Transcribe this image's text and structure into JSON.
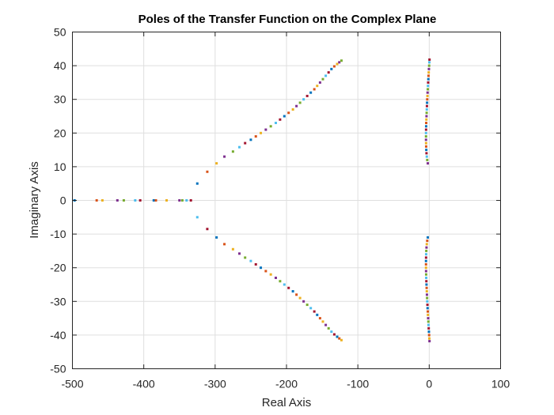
{
  "chart_data": {
    "type": "scatter",
    "title": "Poles of the Transfer Function on the Complex Plane",
    "xlabel": "Real Axis",
    "ylabel": "Imaginary Axis",
    "xlim": [
      -500,
      100
    ],
    "ylim": [
      -50,
      50
    ],
    "xticks": [
      -500,
      -400,
      -300,
      -200,
      -100,
      0,
      100
    ],
    "yticks": [
      -50,
      -40,
      -30,
      -20,
      -10,
      0,
      10,
      20,
      30,
      40,
      50
    ],
    "xtick_labels": [
      "-500",
      "-400",
      "-300",
      "-200",
      "-100",
      "0",
      "100"
    ],
    "ytick_labels": [
      "-50",
      "-40",
      "-30",
      "-20",
      "-10",
      "0",
      "10",
      "20",
      "30",
      "40",
      "50"
    ],
    "grid": true,
    "legend": "none",
    "marker": "square",
    "colors": [
      "#0072BD",
      "#D95319",
      "#EDB120",
      "#7E2F8E",
      "#77AC30",
      "#4DBEEE",
      "#A2142F"
    ],
    "series": [
      {
        "values": [
          {
            "x": -497,
            "y": 0
          },
          {
            "x": -466,
            "y": 0
          },
          {
            "x": -458,
            "y": 0
          },
          {
            "x": -437,
            "y": 0
          },
          {
            "x": -428,
            "y": 0
          },
          {
            "x": -412,
            "y": 0
          },
          {
            "x": -405,
            "y": 0
          },
          {
            "x": -386,
            "y": 0
          },
          {
            "x": -383,
            "y": 0
          },
          {
            "x": -368,
            "y": 0
          },
          {
            "x": -350,
            "y": 0
          },
          {
            "x": -346,
            "y": 0
          },
          {
            "x": -340,
            "y": 0
          },
          {
            "x": -334,
            "y": 0
          }
        ]
      },
      {
        "values": [
          {
            "x": -325,
            "y": 5
          },
          {
            "x": -311,
            "y": 8.5
          },
          {
            "x": -298,
            "y": 11
          },
          {
            "x": -287,
            "y": 13
          },
          {
            "x": -275,
            "y": 14.5
          },
          {
            "x": -266,
            "y": 15.8
          },
          {
            "x": -258,
            "y": 17
          },
          {
            "x": -250,
            "y": 18
          },
          {
            "x": -243,
            "y": 19
          },
          {
            "x": -236,
            "y": 20
          },
          {
            "x": -229,
            "y": 21
          },
          {
            "x": -222,
            "y": 22
          },
          {
            "x": -215,
            "y": 23
          },
          {
            "x": -209,
            "y": 24
          },
          {
            "x": -203,
            "y": 25
          },
          {
            "x": -197,
            "y": 26
          },
          {
            "x": -191,
            "y": 27
          },
          {
            "x": -186,
            "y": 28
          },
          {
            "x": -181,
            "y": 29
          },
          {
            "x": -176,
            "y": 30
          },
          {
            "x": -171,
            "y": 31
          },
          {
            "x": -166,
            "y": 32
          },
          {
            "x": -161,
            "y": 33
          },
          {
            "x": -157,
            "y": 34
          },
          {
            "x": -153,
            "y": 35
          },
          {
            "x": -149,
            "y": 36
          },
          {
            "x": -145,
            "y": 37
          },
          {
            "x": -141,
            "y": 38
          },
          {
            "x": -137,
            "y": 39
          },
          {
            "x": -133,
            "y": 39.8
          },
          {
            "x": -129,
            "y": 40.5
          },
          {
            "x": -126,
            "y": 41
          },
          {
            "x": -123,
            "y": 41.5
          }
        ]
      },
      {
        "values": [
          {
            "x": -325,
            "y": -5
          },
          {
            "x": -311,
            "y": -8.5
          },
          {
            "x": -298,
            "y": -11
          },
          {
            "x": -287,
            "y": -13
          },
          {
            "x": -275,
            "y": -14.5
          },
          {
            "x": -266,
            "y": -15.8
          },
          {
            "x": -258,
            "y": -17
          },
          {
            "x": -250,
            "y": -18
          },
          {
            "x": -243,
            "y": -19
          },
          {
            "x": -236,
            "y": -20
          },
          {
            "x": -229,
            "y": -21
          },
          {
            "x": -222,
            "y": -22
          },
          {
            "x": -215,
            "y": -23
          },
          {
            "x": -209,
            "y": -24
          },
          {
            "x": -203,
            "y": -25
          },
          {
            "x": -197,
            "y": -26
          },
          {
            "x": -191,
            "y": -27
          },
          {
            "x": -186,
            "y": -28
          },
          {
            "x": -181,
            "y": -29
          },
          {
            "x": -176,
            "y": -30
          },
          {
            "x": -171,
            "y": -31
          },
          {
            "x": -166,
            "y": -32
          },
          {
            "x": -161,
            "y": -33
          },
          {
            "x": -157,
            "y": -34
          },
          {
            "x": -153,
            "y": -35
          },
          {
            "x": -149,
            "y": -36
          },
          {
            "x": -145,
            "y": -37
          },
          {
            "x": -141,
            "y": -38
          },
          {
            "x": -137,
            "y": -39
          },
          {
            "x": -133,
            "y": -39.8
          },
          {
            "x": -129,
            "y": -40.5
          },
          {
            "x": -126,
            "y": -41
          },
          {
            "x": -123,
            "y": -41.5
          }
        ]
      },
      {
        "values": [
          {
            "x": -2,
            "y": 11
          },
          {
            "x": -2.8,
            "y": 12
          },
          {
            "x": -3.4,
            "y": 13
          },
          {
            "x": -3.8,
            "y": 14
          },
          {
            "x": -4.1,
            "y": 15
          },
          {
            "x": -4.3,
            "y": 16
          },
          {
            "x": -4.4,
            "y": 17
          },
          {
            "x": -4.5,
            "y": 18
          },
          {
            "x": -4.5,
            "y": 19
          },
          {
            "x": -4.5,
            "y": 20
          },
          {
            "x": -4.4,
            "y": 21
          },
          {
            "x": -4.3,
            "y": 22
          },
          {
            "x": -4.2,
            "y": 23
          },
          {
            "x": -4.0,
            "y": 24
          },
          {
            "x": -3.8,
            "y": 25
          },
          {
            "x": -3.6,
            "y": 26
          },
          {
            "x": -3.4,
            "y": 27
          },
          {
            "x": -3.2,
            "y": 28
          },
          {
            "x": -3.0,
            "y": 29
          },
          {
            "x": -2.8,
            "y": 30
          },
          {
            "x": -2.5,
            "y": 31
          },
          {
            "x": -2.3,
            "y": 32
          },
          {
            "x": -2.0,
            "y": 33
          },
          {
            "x": -1.8,
            "y": 34
          },
          {
            "x": -1.5,
            "y": 35
          },
          {
            "x": -1.2,
            "y": 36
          },
          {
            "x": -1.0,
            "y": 37
          },
          {
            "x": -0.7,
            "y": 38
          },
          {
            "x": -0.4,
            "y": 39
          },
          {
            "x": -0.1,
            "y": 40
          },
          {
            "x": 0.2,
            "y": 41
          },
          {
            "x": 0.4,
            "y": 41.8
          }
        ]
      },
      {
        "values": [
          {
            "x": -2,
            "y": -11
          },
          {
            "x": -2.8,
            "y": -12
          },
          {
            "x": -3.4,
            "y": -13
          },
          {
            "x": -3.8,
            "y": -14
          },
          {
            "x": -4.1,
            "y": -15
          },
          {
            "x": -4.3,
            "y": -16
          },
          {
            "x": -4.4,
            "y": -17
          },
          {
            "x": -4.5,
            "y": -18
          },
          {
            "x": -4.5,
            "y": -19
          },
          {
            "x": -4.5,
            "y": -20
          },
          {
            "x": -4.4,
            "y": -21
          },
          {
            "x": -4.3,
            "y": -22
          },
          {
            "x": -4.2,
            "y": -23
          },
          {
            "x": -4.0,
            "y": -24
          },
          {
            "x": -3.8,
            "y": -25
          },
          {
            "x": -3.6,
            "y": -26
          },
          {
            "x": -3.4,
            "y": -27
          },
          {
            "x": -3.2,
            "y": -28
          },
          {
            "x": -3.0,
            "y": -29
          },
          {
            "x": -2.8,
            "y": -30
          },
          {
            "x": -2.5,
            "y": -31
          },
          {
            "x": -2.3,
            "y": -32
          },
          {
            "x": -2.0,
            "y": -33
          },
          {
            "x": -1.8,
            "y": -34
          },
          {
            "x": -1.5,
            "y": -35
          },
          {
            "x": -1.2,
            "y": -36
          },
          {
            "x": -1.0,
            "y": -37
          },
          {
            "x": -0.7,
            "y": -38
          },
          {
            "x": -0.4,
            "y": -39
          },
          {
            "x": -0.1,
            "y": -40
          },
          {
            "x": 0.2,
            "y": -41
          },
          {
            "x": 0.4,
            "y": -41.8
          }
        ]
      }
    ]
  }
}
